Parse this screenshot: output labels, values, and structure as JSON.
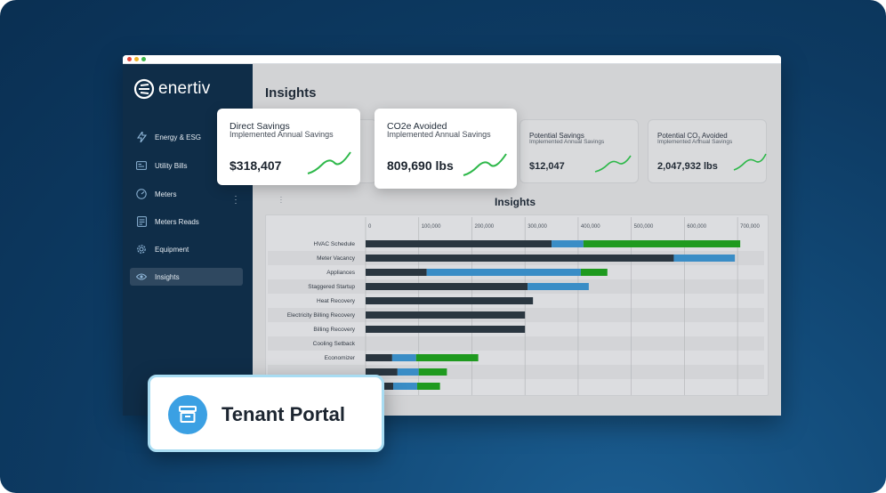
{
  "brand": {
    "name": "enertiv"
  },
  "sidebar": {
    "items": [
      {
        "label": "Energy & ESG",
        "icon": "bolt-icon"
      },
      {
        "label": "Utility Bills",
        "icon": "bill-icon"
      },
      {
        "label": "Meters",
        "icon": "meter-gauge-icon"
      },
      {
        "label": "Meters Reads",
        "icon": "meter-reads-icon"
      },
      {
        "label": "Equipment",
        "icon": "gear-icon"
      },
      {
        "label": "Insights",
        "icon": "eye-icon",
        "active": true
      }
    ]
  },
  "main": {
    "title": "Insights",
    "kpis": [
      {
        "title": "Direct Savings",
        "subtitle": "Implemented Annual Savings",
        "value": "$318,407"
      },
      {
        "title": "CO2e Avoided",
        "subtitle": "Implemented Annual Savings",
        "value": "809,690 lbs"
      },
      {
        "title": "Potential Savings",
        "subtitle": "Implemented Annual Savings",
        "value": "$12,047"
      },
      {
        "title_main": "Potential CO",
        "title_sub": "2",
        "title_end": " Avoided",
        "subtitle": "Implemented Annual Savings",
        "value": "2,047,932 lbs"
      }
    ],
    "chart_title": "Insights"
  },
  "colors": {
    "dark": "#2a3640",
    "blue": "#3a8dc6",
    "green": "#1f9a1f",
    "sidebar": "#0f2d48",
    "spark": "#2eb84a"
  },
  "chart_data": {
    "type": "bar",
    "orientation": "horizontal",
    "stacked": true,
    "title": "Insights",
    "x_ticks": [
      "0",
      "100,000",
      "200,000",
      "300,000",
      "400,000",
      "500,000",
      "600,000",
      "700,000"
    ],
    "xlim": [
      0,
      750000
    ],
    "categories": [
      "HVAC Schedule",
      "Meter Vacancy",
      "Appliances",
      "Staggered Startup",
      "Heat Recovery",
      "Electricity Billing Recovery",
      "Billing Recovery",
      "Cooling Setback",
      "Economizer",
      "",
      ""
    ],
    "series": [
      {
        "color": "#2a3640",
        "values": [
          350000,
          580000,
          115000,
          305000,
          315000,
          300000,
          300000,
          0,
          50000,
          60000,
          52000
        ]
      },
      {
        "color": "#3a8dc6",
        "values": [
          60000,
          115000,
          290000,
          115000,
          0,
          0,
          0,
          0,
          45000,
          40000,
          45000
        ]
      },
      {
        "color": "#1f9a1f",
        "values": [
          295000,
          0,
          50000,
          0,
          0,
          0,
          0,
          0,
          117000,
          53000,
          43000
        ]
      }
    ]
  },
  "tenant_portal": {
    "label": "Tenant Portal",
    "icon": "archive-box-icon"
  }
}
